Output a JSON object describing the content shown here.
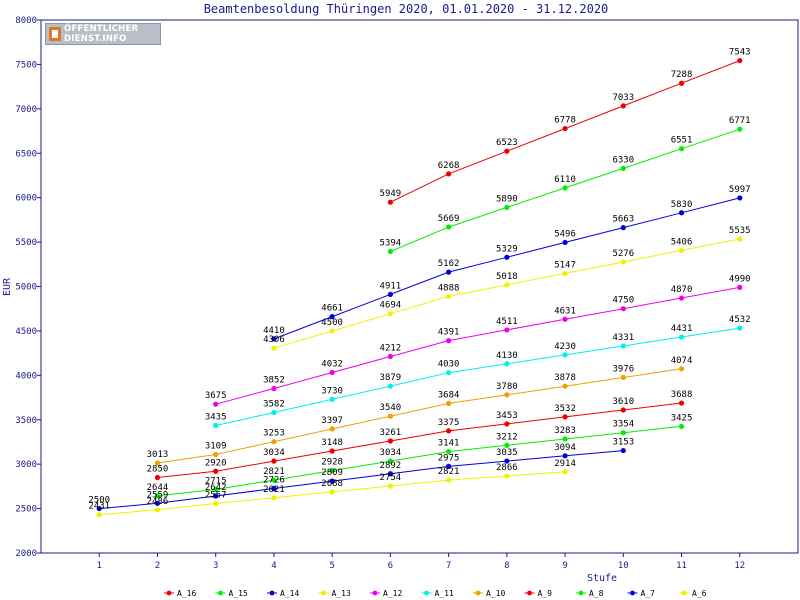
{
  "logo": {
    "line1": "ÖFFENTLICHER",
    "line2": "DIENST.INFO"
  },
  "chart_data": {
    "type": "line",
    "title": "Beamtenbesoldung Thüringen 2020, 01.01.2020 - 31.12.2020",
    "xlabel": "Stufe",
    "ylabel": "EUR",
    "xlim": [
      0,
      13
    ],
    "ylim": [
      2000,
      8000
    ],
    "xticks": [
      1,
      2,
      3,
      4,
      5,
      6,
      7,
      8,
      9,
      10,
      11,
      12
    ],
    "yticks": [
      2000,
      2500,
      3000,
      3500,
      4000,
      4500,
      5000,
      5500,
      6000,
      6500,
      7000,
      7500,
      8000
    ],
    "grid": false,
    "legend_position": "bottom",
    "series": [
      {
        "name": "A_16",
        "color": "#ee0000",
        "x": [
          6,
          7,
          8,
          9,
          10,
          11,
          12
        ],
        "values": [
          5949,
          6268,
          6523,
          6778,
          7033,
          7288,
          7543
        ]
      },
      {
        "name": "A_15",
        "color": "#00ee00",
        "x": [
          6,
          7,
          8,
          9,
          10,
          11,
          12
        ],
        "values": [
          5394,
          5669,
          5890,
          6110,
          6330,
          6551,
          6771
        ]
      },
      {
        "name": "A_14",
        "color": "#0000dd",
        "x": [
          4,
          5,
          6,
          7,
          8,
          9,
          10,
          11,
          12
        ],
        "values": [
          4410,
          4661,
          4911,
          5162,
          5329,
          5496,
          5663,
          5830,
          5997
        ]
      },
      {
        "name": "A_13",
        "color": "#f0f000",
        "x": [
          4,
          5,
          6,
          7,
          8,
          9,
          10,
          11,
          12
        ],
        "values": [
          4306,
          4500,
          4694,
          4888,
          5018,
          5147,
          5276,
          5406,
          5535
        ]
      },
      {
        "name": "A_12",
        "color": "#ee00ee",
        "x": [
          3,
          4,
          5,
          6,
          7,
          8,
          9,
          10,
          11,
          12
        ],
        "values": [
          3675,
          3852,
          4032,
          4212,
          4391,
          4511,
          4631,
          4750,
          4870,
          4990
        ]
      },
      {
        "name": "A_11",
        "color": "#00eeee",
        "x": [
          3,
          4,
          5,
          6,
          7,
          8,
          9,
          10,
          11,
          12
        ],
        "values": [
          3435,
          3582,
          3730,
          3879,
          4030,
          4130,
          4230,
          4331,
          4431,
          4532
        ]
      },
      {
        "name": "A_10",
        "color": "#f0a000",
        "x": [
          2,
          3,
          4,
          5,
          6,
          7,
          8,
          9,
          10,
          11
        ],
        "values": [
          3013,
          3109,
          3253,
          3397,
          3540,
          3684,
          3780,
          3878,
          3976,
          4074
        ]
      },
      {
        "name": "A_9",
        "color": "#ee0000",
        "x": [
          2,
          3,
          4,
          5,
          6,
          7,
          8,
          9,
          10,
          11
        ],
        "values": [
          2850,
          2920,
          3034,
          3148,
          3261,
          3375,
          3453,
          3532,
          3610,
          3688
        ]
      },
      {
        "name": "A_8",
        "color": "#00ee00",
        "x": [
          2,
          3,
          4,
          5,
          6,
          7,
          8,
          9,
          10,
          11
        ],
        "values": [
          2644,
          2715,
          2821,
          2928,
          3034,
          3141,
          3212,
          3283,
          3354,
          3425
        ]
      },
      {
        "name": "A_7",
        "color": "#0000dd",
        "x": [
          1,
          2,
          3,
          4,
          5,
          6,
          7,
          8,
          9,
          10
        ],
        "values": [
          2500,
          2559,
          2642,
          2726,
          2809,
          2892,
          2975,
          3035,
          3094,
          3153
        ]
      },
      {
        "name": "A_6",
        "color": "#f0f000",
        "x": [
          1,
          2,
          3,
          4,
          5,
          6,
          7,
          8,
          9
        ],
        "values": [
          2431,
          2486,
          2557,
          2621,
          2688,
          2754,
          2821,
          2866,
          2914
        ]
      }
    ]
  }
}
